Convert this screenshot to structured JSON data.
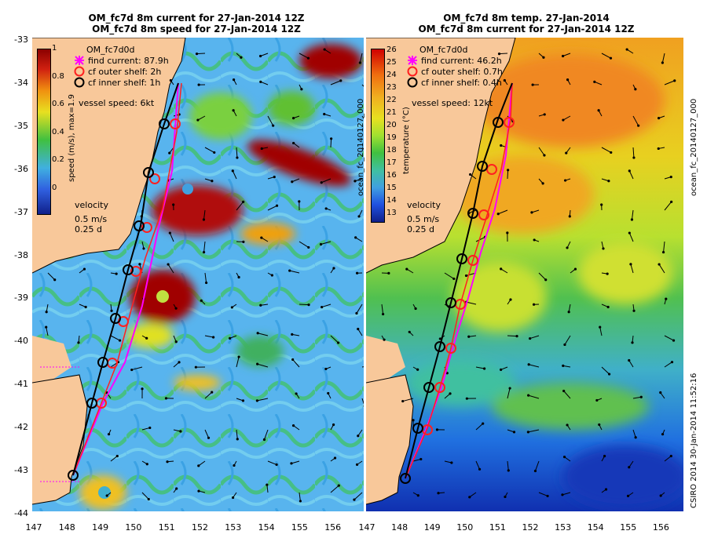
{
  "left": {
    "title_line1": "OM_fc7d 8m current for 27-Jan-2014 12Z",
    "title_line2": "OM_fc7d 8m speed for 27-Jan-2014 12Z",
    "model_label": "OM_fc7d0d",
    "colorbar_label": "speed (m/s), max=1.9",
    "colorbar_ticks": [
      "1",
      "0.8",
      "0.6",
      "0.4",
      "0.2",
      "0"
    ],
    "legend": {
      "find": "find current: 87.9h",
      "outer": "cf outer shelf: 2h",
      "inner": "cf inner shelf: 1h"
    },
    "vessel_speed": "vessel speed: 6kt",
    "velocity_title": "velocity",
    "velocity_scale1": "0.5 m/s",
    "velocity_scale2": "0.25 d"
  },
  "right": {
    "title_line1": "OM_fc7d 8m temp. 27-Jan-2014",
    "title_line2": "OM_fc7d 8m current for 27-Jan-2014 12Z",
    "model_label": "OM_fc7d0d",
    "colorbar_label": "temperature (°C)",
    "side_label": "ocean_fc_20140127_000",
    "colorbar_ticks": [
      "26",
      "25",
      "24",
      "23",
      "22",
      "21",
      "20",
      "19",
      "18",
      "17",
      "16",
      "15",
      "14",
      "13"
    ],
    "legend": {
      "find": "find current: 46.2h",
      "outer": "cf outer shelf: 0.7h",
      "inner": "cf inner shelf: 0.4h"
    },
    "vessel_speed": "vessel speed: 12kt",
    "velocity_title": "velocity",
    "velocity_scale1": "0.5 m/s",
    "velocity_scale2": "0.25 d"
  },
  "side_label_right": "ocean_fc_20140127_000",
  "footer_label": "CSIRO 2014    30-Jan-2014 11:52:16",
  "y_axis_labels": [
    "-33",
    "-34",
    "-35",
    "-36",
    "-37",
    "-38",
    "-39",
    "-40",
    "-41",
    "-42",
    "-43",
    "-44"
  ],
  "x_axis_labels": [
    "147",
    "148",
    "149",
    "150",
    "151",
    "152",
    "153",
    "154",
    "155",
    "156"
  ],
  "colors": {
    "land": "#f8c89a",
    "find_current": "#ff00ff",
    "outer_shelf": "#ff2020",
    "inner_shelf": "#000000"
  }
}
